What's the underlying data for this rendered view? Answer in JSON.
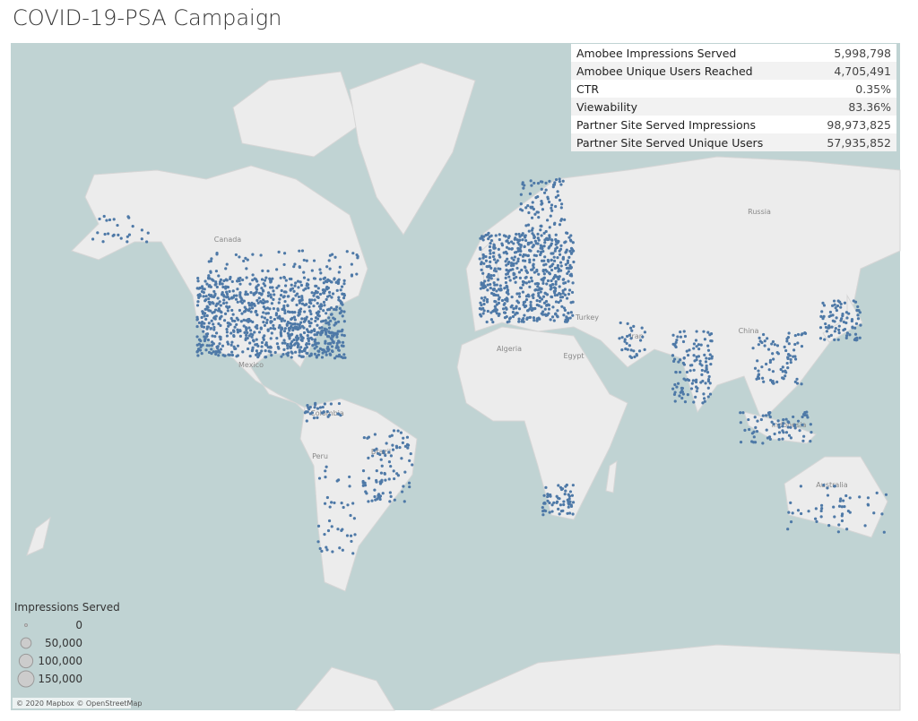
{
  "title": "COVID-19-PSA Campaign",
  "stats": [
    {
      "label": "Amobee Impressions Served",
      "value": "5,998,798"
    },
    {
      "label": "Amobee Unique Users Reached",
      "value": "4,705,491"
    },
    {
      "label": "CTR",
      "value": "0.35%"
    },
    {
      "label": "Viewability",
      "value": "83.36%"
    },
    {
      "label": "Partner Site Served Impressions",
      "value": "98,973,825"
    },
    {
      "label": "Partner Site Served Unique Users",
      "value": "57,935,852"
    }
  ],
  "legend": {
    "title": "Impressions Served",
    "items": [
      {
        "value": 0,
        "label": "0"
      },
      {
        "value": 50000,
        "label": "50,000"
      },
      {
        "value": 100000,
        "label": "100,000"
      },
      {
        "value": 150000,
        "label": "150,000"
      }
    ]
  },
  "map_labels": [
    "Canada",
    "Russia",
    "Mexico",
    "Turkey",
    "Iran",
    "China",
    "Algeria",
    "Egypt",
    "Colombia",
    "Peru",
    "Brazil",
    "Indonesia",
    "Australia"
  ],
  "attribution": "© 2020 Mapbox © OpenStreetMap"
}
